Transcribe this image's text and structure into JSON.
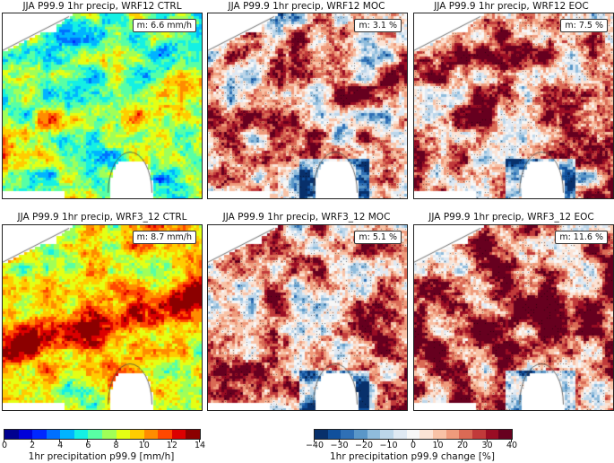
{
  "panels": [
    {
      "title": "JJA P99.9 1hr precip, WRF12 CTRL",
      "mean_label": "m: 6.6 mm/h",
      "kind": "abs",
      "base": 6.6
    },
    {
      "title": "JJA P99.9 1hr precip, WRF12 MOC",
      "mean_label": "m: 3.1 %",
      "kind": "change",
      "base": 3.1
    },
    {
      "title": "JJA P99.9 1hr precip, WRF12 EOC",
      "mean_label": "m: 7.5 %",
      "kind": "change",
      "base": 7.5
    },
    {
      "title": "JJA P99.9 1hr precip, WRF3_12 CTRL",
      "mean_label": "m: 8.7 mm/h",
      "kind": "abs",
      "base": 8.7
    },
    {
      "title": "JJA P99.9 1hr precip, WRF3_12 MOC",
      "mean_label": "m: 5.1 %",
      "kind": "change",
      "base": 5.1
    },
    {
      "title": "JJA P99.9 1hr precip, WRF3_12 EOC",
      "mean_label": "m: 11.6 %",
      "kind": "change",
      "base": 11.6
    }
  ],
  "colorbars": {
    "abs": {
      "label": "1hr precipitation p99.9 [mm/h]",
      "ticks": [
        "0",
        "2",
        "4",
        "6",
        "8",
        "10",
        "12",
        "14"
      ],
      "range": [
        0,
        14
      ],
      "colors": [
        "#00008f",
        "#0000d8",
        "#0028ff",
        "#0070ff",
        "#00b4ff",
        "#14f0e4",
        "#58ffa4",
        "#a0ff58",
        "#e4ff14",
        "#ffcc00",
        "#ff8c00",
        "#ff4800",
        "#dc0000",
        "#8c0000"
      ]
    },
    "change": {
      "label": "1hr precipitation p99.9 change [%]",
      "ticks": [
        "−40",
        "−30",
        "−20",
        "−10",
        "0",
        "10",
        "20",
        "30",
        "40"
      ],
      "range": [
        -40,
        40
      ],
      "colors": [
        "#08306b",
        "#10509c",
        "#2f70b6",
        "#5a97c8",
        "#8fbcdc",
        "#bcd6ea",
        "#dfe9f3",
        "#f7f7f7",
        "#fbe3d5",
        "#f8c2a6",
        "#ef9b7c",
        "#da6a55",
        "#c13a3a",
        "#9a0d24",
        "#67001f"
      ]
    }
  }
}
